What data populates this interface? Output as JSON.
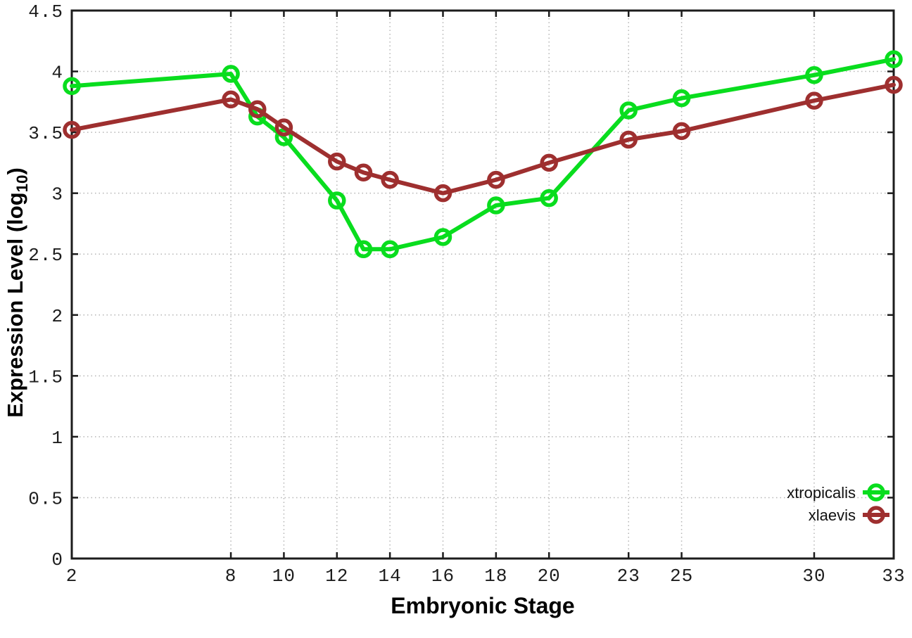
{
  "chart_data": {
    "type": "line",
    "title": "",
    "xlabel": "Embryonic Stage",
    "ylabel": "Expression Level (log10)",
    "ylabel_parts": {
      "main": "Expression Level (log",
      "sub": "10",
      "end": ")"
    },
    "x": [
      2,
      8,
      9,
      10,
      12,
      13,
      14,
      16,
      18,
      20,
      23,
      25,
      30,
      33
    ],
    "xticks": [
      2,
      8,
      10,
      12,
      14,
      16,
      18,
      20,
      23,
      25,
      30,
      33
    ],
    "yticks": [
      0,
      0.5,
      1,
      1.5,
      2,
      2.5,
      3,
      3.5,
      4,
      4.5
    ],
    "xlim": [
      2,
      33
    ],
    "ylim": [
      0,
      4.5
    ],
    "grid": true,
    "legend_position": "bottom-right",
    "series": [
      {
        "name": "xtropicalis",
        "color": "#09dd1e",
        "values": [
          3.88,
          3.98,
          3.63,
          3.46,
          2.94,
          2.54,
          2.54,
          2.64,
          2.9,
          2.96,
          3.68,
          3.78,
          3.97,
          4.1
        ]
      },
      {
        "name": "xlaevis",
        "color": "#9e2f2f",
        "values": [
          3.52,
          3.77,
          3.69,
          3.54,
          3.26,
          3.17,
          3.11,
          3.0,
          3.11,
          3.25,
          3.44,
          3.51,
          3.76,
          3.89
        ]
      }
    ]
  }
}
